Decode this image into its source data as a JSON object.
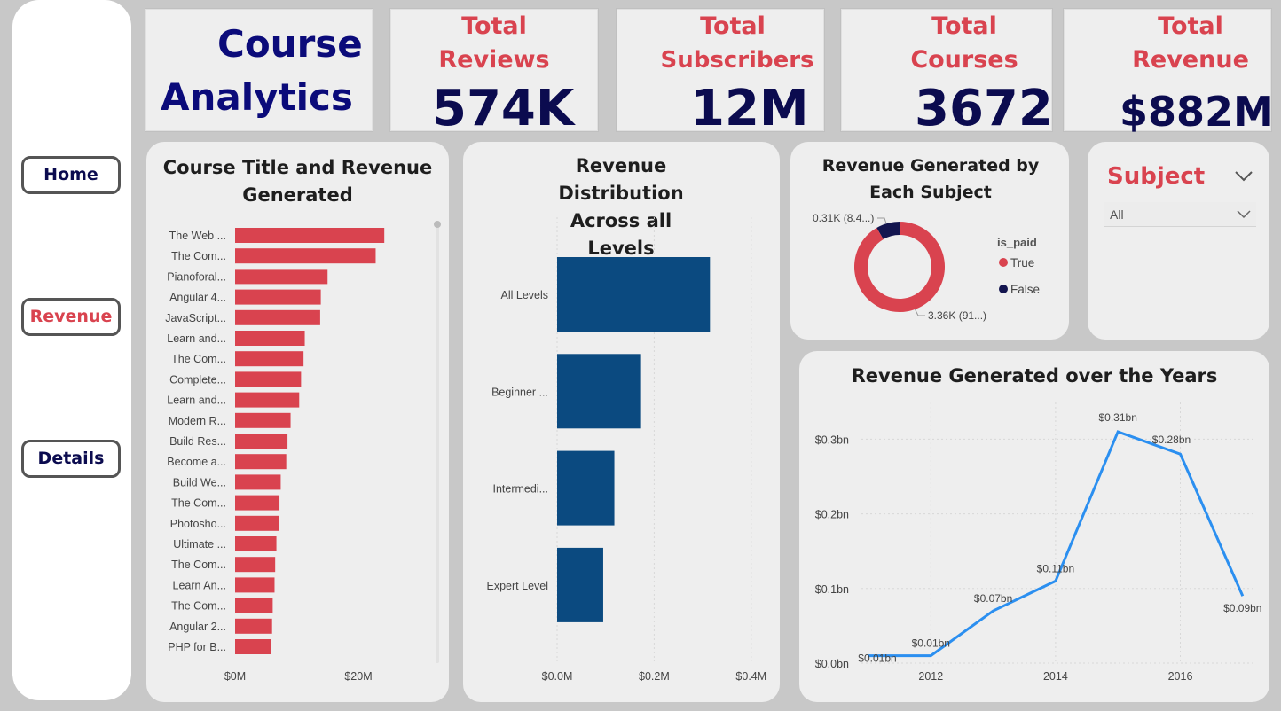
{
  "nav": {
    "home": "Home",
    "revenue": "Revenue",
    "details": "Details"
  },
  "header": {
    "title_line1": "Course",
    "title_line2": "Analytics"
  },
  "kpis": [
    {
      "label_line1": "Total",
      "label_line2": "Reviews",
      "value": "574K"
    },
    {
      "label_line1": "Total",
      "label_line2": "Subscribers",
      "value": "12M"
    },
    {
      "label_line1": "Total",
      "label_line2": "Courses",
      "value": "3672"
    },
    {
      "label_line1": "Total",
      "label_line2": "Revenue",
      "value": "$882M"
    }
  ],
  "slicer": {
    "title": "Subject",
    "selected": "All"
  },
  "colors": {
    "accent_red": "#d9434f",
    "navy": "#0b0b4f",
    "bar_blue": "#0b4a80",
    "line_blue": "#2b8ff0",
    "donut_dark": "#13154f"
  },
  "chart_data": [
    {
      "type": "bar",
      "title": "Course Title and Revenue Generated",
      "orientation": "horizontal",
      "categories": [
        "The Web ...",
        "The Com...",
        "Pianoforal...",
        "Angular 4...",
        "JavaScript...",
        "Learn and...",
        "The Com...",
        "Complete...",
        "Learn and...",
        "Modern R...",
        "Build Res...",
        "Become a...",
        "Build We...",
        "The Com...",
        "Photosho...",
        "Ultimate ...",
        "The Com...",
        "Learn An...",
        "The Com...",
        "Angular 2...",
        "PHP for B..."
      ],
      "values": [
        24.2,
        22.8,
        15.0,
        13.9,
        13.8,
        11.3,
        11.1,
        10.7,
        10.4,
        9.0,
        8.5,
        8.3,
        7.4,
        7.2,
        7.1,
        6.7,
        6.5,
        6.4,
        6.1,
        6.0,
        5.8
      ],
      "value_unit": "$M",
      "xticks": [
        "$0M",
        "$20M"
      ],
      "xlim": [
        0,
        30
      ]
    },
    {
      "type": "bar",
      "title": "Revenue Distribution Across all Levels",
      "orientation": "horizontal",
      "categories": [
        "All Levels",
        "Beginner ...",
        "Intermedi...",
        "Expert Level"
      ],
      "values": [
        0.315,
        0.173,
        0.118,
        0.095
      ],
      "value_unit": "$M",
      "xticks": [
        "$0.0M",
        "$0.2M",
        "$0.4M"
      ],
      "xlim": [
        0,
        0.4
      ]
    },
    {
      "type": "pie",
      "title": "Revenue Generated by Each Subject",
      "legend_title": "is_paid",
      "slices": [
        {
          "name": "True",
          "value": 3.36,
          "label": "3.36K (91...)",
          "color": "#d9434f"
        },
        {
          "name": "False",
          "value": 0.31,
          "label": "0.31K (8.4...)",
          "color": "#13154f"
        }
      ]
    },
    {
      "type": "line",
      "title": "Revenue Generated over the Years",
      "x": [
        2011,
        2012,
        2013,
        2014,
        2015,
        2016,
        2017
      ],
      "values": [
        0.01,
        0.01,
        0.07,
        0.11,
        0.31,
        0.28,
        0.09
      ],
      "data_labels": [
        "$0.01bn",
        "$0.01bn",
        "$0.07bn",
        "$0.11bn",
        "$0.31bn",
        "$0.28bn",
        "$0.09bn"
      ],
      "xticks": [
        "2012",
        "2014",
        "2016"
      ],
      "yticks": [
        "$0.0bn",
        "$0.1bn",
        "$0.2bn",
        "$0.3bn"
      ],
      "ylim": [
        0,
        0.35
      ]
    }
  ]
}
